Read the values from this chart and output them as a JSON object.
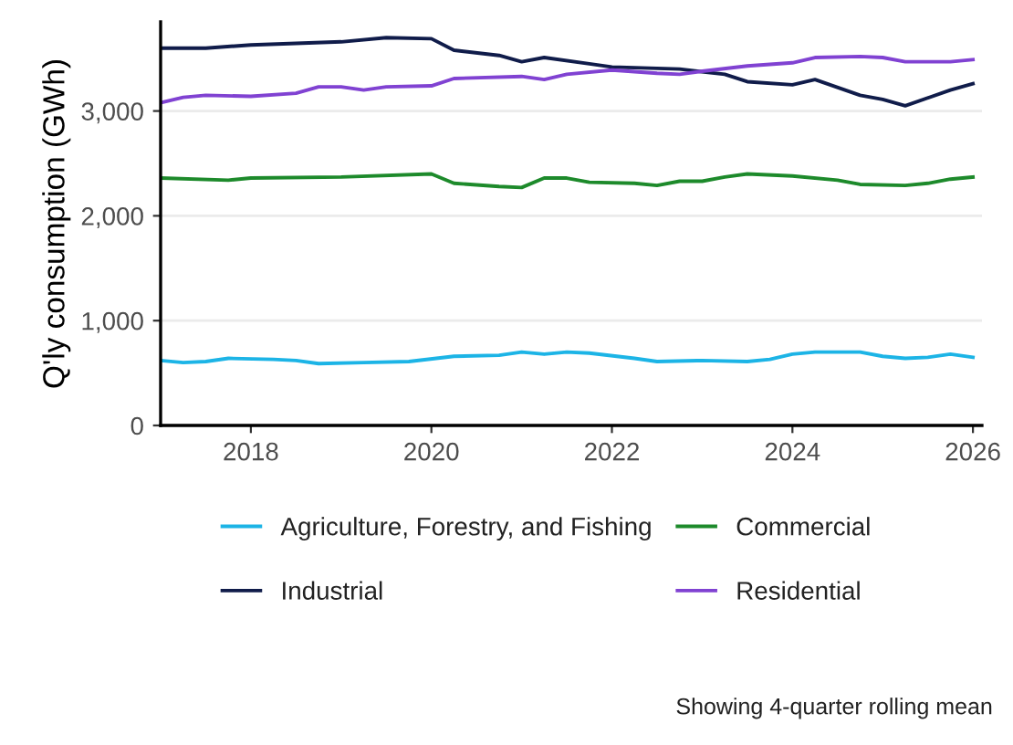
{
  "chart_data": {
    "type": "line",
    "ylabel": "Q'ly consumption (GWh)",
    "xlim": [
      2017,
      2026.1
    ],
    "xticks": [
      2018,
      2020,
      2022,
      2024,
      2026
    ],
    "ylim": [
      0,
      3850
    ],
    "yticks": [
      0,
      {
        "value": 1000,
        "label": "1,000"
      },
      {
        "value": 2000,
        "label": "2,000"
      },
      {
        "value": 3000,
        "label": "3,000"
      }
    ],
    "grid": "y",
    "legend": "bottom",
    "marker": "none",
    "line_style": "solid",
    "annotations": [
      "Showing 4-quarter rolling mean"
    ],
    "series": [
      {
        "name": "Agriculture, Forestry, and Fishing",
        "color": "#1cb4e6",
        "x": [
          2017,
          2017.25,
          2017.5,
          2017.75,
          2018.25,
          2018.5,
          2018.75,
          2019.25,
          2019.75,
          2020.25,
          2020.75,
          2021,
          2021.25,
          2021.5,
          2021.75,
          2022.25,
          2022.5,
          2023,
          2023.5,
          2023.75,
          2024,
          2024.25,
          2024.75,
          2025,
          2025.25,
          2025.5,
          2025.75,
          2026
        ],
        "values": [
          620,
          600,
          610,
          640,
          630,
          620,
          590,
          600,
          610,
          660,
          670,
          700,
          680,
          700,
          690,
          640,
          610,
          620,
          610,
          630,
          680,
          700,
          700,
          660,
          640,
          650,
          680,
          650
        ]
      },
      {
        "name": "Industrial",
        "color": "#101c4a",
        "x": [
          2017,
          2017.5,
          2018,
          2019,
          2019.5,
          2020,
          2020.25,
          2020.75,
          2021,
          2021.25,
          2021.75,
          2022,
          2022.75,
          2023.25,
          2023.5,
          2024,
          2024.25,
          2024.75,
          2025,
          2025.25,
          2025.75,
          2026
        ],
        "values": [
          3600,
          3600,
          3630,
          3660,
          3700,
          3690,
          3580,
          3530,
          3470,
          3510,
          3450,
          3420,
          3400,
          3350,
          3280,
          3250,
          3300,
          3150,
          3110,
          3050,
          3200,
          3260
        ]
      },
      {
        "name": "Commercial",
        "color": "#1d8a2b",
        "x": [
          2017,
          2017.75,
          2018,
          2019,
          2020,
          2020.25,
          2020.75,
          2021,
          2021.25,
          2021.5,
          2021.75,
          2022.25,
          2022.5,
          2022.75,
          2023,
          2023.25,
          2023.5,
          2024,
          2024.5,
          2024.75,
          2025.25,
          2025.5,
          2025.75,
          2026
        ],
        "values": [
          2360,
          2340,
          2360,
          2370,
          2400,
          2310,
          2280,
          2270,
          2360,
          2360,
          2320,
          2310,
          2290,
          2330,
          2330,
          2370,
          2400,
          2380,
          2340,
          2300,
          2290,
          2310,
          2350,
          2370
        ]
      },
      {
        "name": "Residential",
        "color": "#8042d2",
        "x": [
          2017,
          2017.25,
          2017.5,
          2018,
          2018.5,
          2018.75,
          2019,
          2019.25,
          2019.5,
          2020,
          2020.25,
          2021,
          2021.25,
          2021.5,
          2022,
          2022.5,
          2022.75,
          2023,
          2023.5,
          2024,
          2024.25,
          2024.75,
          2025,
          2025.25,
          2025.75,
          2026
        ],
        "values": [
          3080,
          3130,
          3150,
          3140,
          3170,
          3230,
          3230,
          3200,
          3230,
          3240,
          3310,
          3330,
          3300,
          3350,
          3390,
          3360,
          3350,
          3380,
          3430,
          3460,
          3510,
          3520,
          3510,
          3470,
          3470,
          3490
        ]
      }
    ]
  }
}
